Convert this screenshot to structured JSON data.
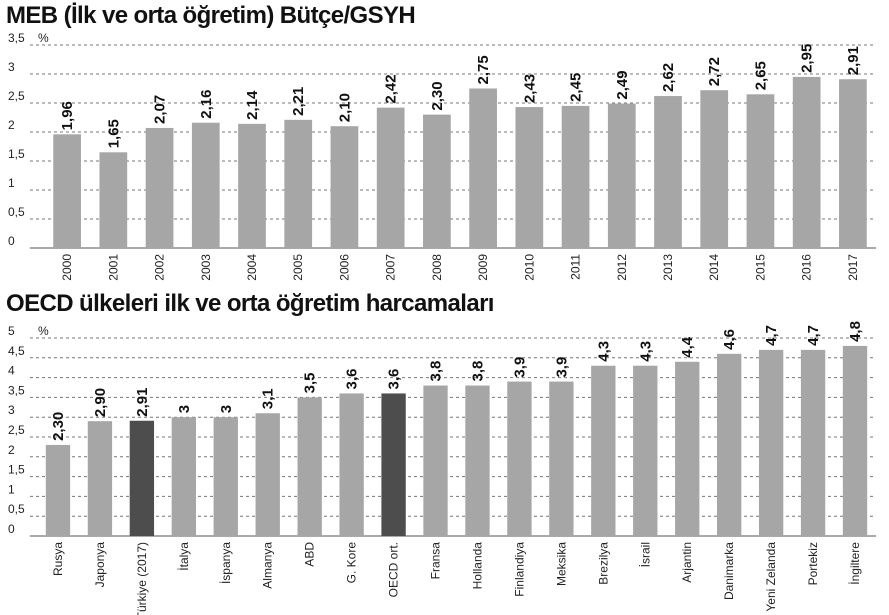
{
  "colors": {
    "bar": "#a6a6a6",
    "highlight": "#4d4d4d",
    "grid": "#777777",
    "text": "#111111"
  },
  "chart_data": [
    {
      "type": "bar",
      "title": "MEB (İlk ve orta öğretim) Bütçe/GSYH",
      "unit": "%",
      "categories": [
        "2000",
        "2001",
        "2002",
        "2003",
        "2004",
        "2005",
        "2006",
        "2007",
        "2008",
        "2009",
        "2010",
        "2011",
        "2012",
        "2013",
        "2014",
        "2015",
        "2016",
        "2017"
      ],
      "values": [
        1.96,
        1.65,
        2.07,
        2.16,
        2.14,
        2.21,
        2.1,
        2.42,
        2.3,
        2.75,
        2.43,
        2.45,
        2.49,
        2.62,
        2.72,
        2.65,
        2.95,
        2.91
      ],
      "value_labels": [
        "1,96",
        "1,65",
        "2,07",
        "2,16",
        "2,14",
        "2,21",
        "2,10",
        "2,42",
        "2,30",
        "2,75",
        "2,43",
        "2,45",
        "2,49",
        "2,62",
        "2,72",
        "2,65",
        "2,95",
        "2,91"
      ],
      "yticks": [
        0,
        0.5,
        1,
        1.5,
        2,
        2.5,
        3,
        3.5
      ],
      "ytick_labels": [
        "0",
        "0,5",
        "1",
        "1,5",
        "2",
        "2,5",
        "3",
        "3,5"
      ],
      "ylim": [
        0,
        3.5
      ],
      "grid": true,
      "highlight": []
    },
    {
      "type": "bar",
      "title": "OECD ülkeleri ilk ve orta öğretim harcamaları",
      "unit": "%",
      "categories": [
        "Rusya",
        "Japonya",
        "Türkiye (2017)",
        "İtalya",
        "İspanya",
        "Almanya",
        "ABD",
        "G. Kore",
        "OECD ort.",
        "Fransa",
        "Hollanda",
        "Finlandiya",
        "Meksika",
        "Brezilya",
        "İsrail",
        "Arjantin",
        "Danimarka",
        "Yeni Zelanda",
        "Portekiz",
        "İngiltere"
      ],
      "values": [
        2.3,
        2.9,
        2.91,
        3,
        3,
        3.1,
        3.5,
        3.6,
        3.6,
        3.8,
        3.8,
        3.9,
        3.9,
        4.3,
        4.3,
        4.4,
        4.6,
        4.7,
        4.7,
        4.8
      ],
      "value_labels": [
        "2,30",
        "2,90",
        "2,91",
        "3",
        "3",
        "3,1",
        "3,5",
        "3,6",
        "3,6",
        "3,8",
        "3,8",
        "3,9",
        "3,9",
        "4,3",
        "4,3",
        "4,4",
        "4,6",
        "4,7",
        "4,7",
        "4,8"
      ],
      "yticks": [
        0,
        0.5,
        1,
        1.5,
        2,
        2.5,
        3,
        3.5,
        4,
        4.5,
        5
      ],
      "ytick_labels": [
        "0",
        "0,5",
        "1",
        "1,5",
        "2",
        "2,5",
        "3",
        "3,5",
        "4",
        "4,5",
        "5"
      ],
      "ylim": [
        0,
        5
      ],
      "grid": true,
      "highlight": [
        "Türkiye (2017)",
        "OECD ort."
      ]
    }
  ]
}
